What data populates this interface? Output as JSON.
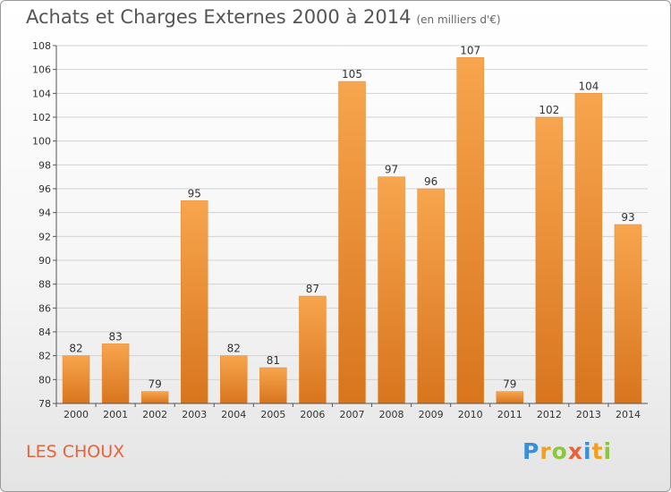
{
  "title": "Achats et Charges Externes 2000 à 2014",
  "subtitle": "(en milliers d'€)",
  "commune": "LES CHOUX",
  "logo": {
    "letters": [
      {
        "ch": "P",
        "color": "#3a8fd8"
      },
      {
        "ch": "r",
        "color": "#f0a020"
      },
      {
        "ch": "o",
        "color": "#8cc63f"
      },
      {
        "ch": "x",
        "color": "#e8623a"
      },
      {
        "ch": "i",
        "color": "#3a8fd8"
      },
      {
        "ch": "t",
        "color": "#f0a020"
      },
      {
        "ch": "i",
        "color": "#8cc63f"
      }
    ]
  },
  "colors": {
    "bar_light": "#f7a54e",
    "bar_dark": "#d8751d",
    "commune": "#e8623a"
  },
  "chart_data": {
    "type": "bar",
    "categories": [
      "2000",
      "2001",
      "2002",
      "2003",
      "2004",
      "2005",
      "2006",
      "2007",
      "2008",
      "2009",
      "2010",
      "2011",
      "2012",
      "2013",
      "2014"
    ],
    "values": [
      82,
      83,
      79,
      95,
      82,
      81,
      87,
      105,
      97,
      96,
      107,
      79,
      102,
      104,
      93
    ],
    "title": "Achats et Charges Externes 2000 à 2014",
    "ylim": [
      78,
      108
    ],
    "yticks": [
      78,
      80,
      82,
      84,
      86,
      88,
      90,
      92,
      94,
      96,
      98,
      100,
      102,
      104,
      106,
      108
    ],
    "grid": true
  }
}
